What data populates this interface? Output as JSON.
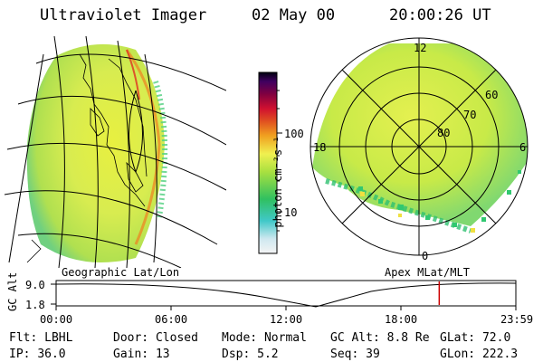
{
  "header": {
    "instrument": "Ultraviolet Imager",
    "date": "02 May 00",
    "time": "20:00:26 UT"
  },
  "colorbar": {
    "unit_label": "photon cm⁻²s⁻¹",
    "ticks": [
      {
        "label": "100",
        "value": 100
      },
      {
        "label": "10",
        "value": 10
      }
    ]
  },
  "geo_panel": {
    "label": "Geographic Lat/Lon"
  },
  "polar_panel": {
    "label": "Apex MLat/MLT",
    "mlt_labels": [
      "12",
      "18",
      "6",
      "0"
    ],
    "mlat_labels": [
      "60",
      "70",
      "80"
    ]
  },
  "altitude_plot": {
    "ylabel": "GC Alt",
    "yticks": [
      "9.0",
      "1.8"
    ],
    "xticks": [
      "00:00",
      "06:00",
      "12:00",
      "18:00",
      "23:59"
    ],
    "current_marker_hour": 20.0,
    "minimum_hour": 13.6,
    "marker_color": "#cc0000"
  },
  "footer": {
    "row1": [
      {
        "key": "Flt:",
        "value": "LBHL"
      },
      {
        "key": "Door:",
        "value": "Closed"
      },
      {
        "key": "Mode:",
        "value": "Normal"
      },
      {
        "key": "GC Alt:",
        "value": "8.8 Re"
      },
      {
        "key": "GLat:",
        "value": "72.0"
      }
    ],
    "row2": [
      {
        "key": "IP:",
        "value": "36.0"
      },
      {
        "key": "Gain:",
        "value": "13"
      },
      {
        "key": "Dsp:",
        "value": "5.2"
      },
      {
        "key": "Seq:",
        "value": "39"
      },
      {
        "key": "GLon:",
        "value": "222.3"
      }
    ]
  }
}
